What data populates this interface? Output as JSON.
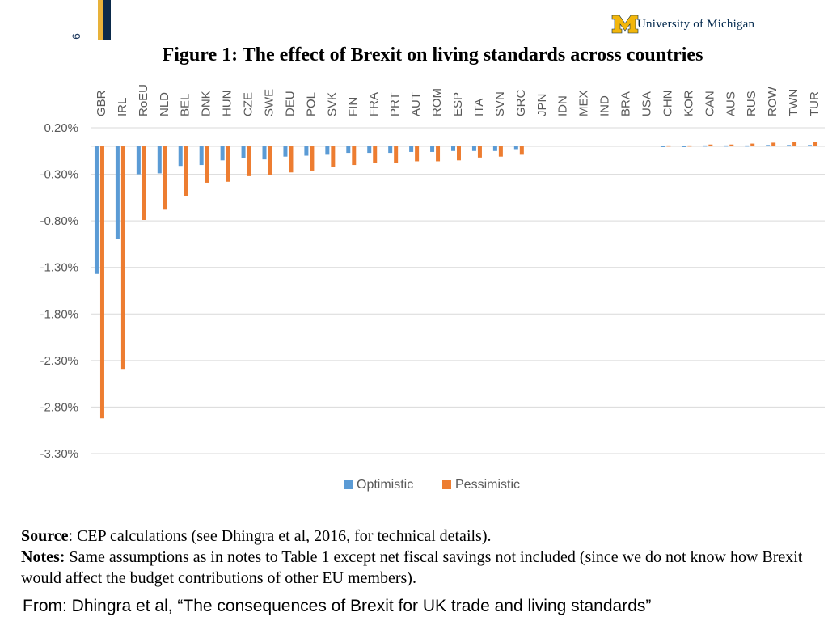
{
  "slide": {
    "number": "6"
  },
  "header": {
    "university": "University of Michigan",
    "colors": {
      "gold": "#E8B23A",
      "navy": "#00274C"
    }
  },
  "chart_data": {
    "type": "bar",
    "title": "Figure 1: The effect of Brexit on living standards across countries",
    "categories": [
      "GBR",
      "IRL",
      "RoEU",
      "NLD",
      "BEL",
      "DNK",
      "HUN",
      "CZE",
      "SWE",
      "DEU",
      "POL",
      "SVK",
      "FIN",
      "FRA",
      "PRT",
      "AUT",
      "ROM",
      "ESP",
      "ITA",
      "SVN",
      "GRC",
      "JPN",
      "IDN",
      "MEX",
      "IND",
      "BRA",
      "USA",
      "CHN",
      "KOR",
      "CAN",
      "AUS",
      "RUS",
      "ROW",
      "TWN",
      "TUR"
    ],
    "series": [
      {
        "name": "Optimistic",
        "color": "#5B9BD5",
        "values": [
          -1.37,
          -0.99,
          -0.3,
          -0.29,
          -0.21,
          -0.2,
          -0.15,
          -0.13,
          -0.14,
          -0.11,
          -0.1,
          -0.09,
          -0.07,
          -0.07,
          -0.07,
          -0.06,
          -0.06,
          -0.05,
          -0.05,
          -0.05,
          -0.03,
          0,
          0,
          0,
          0,
          0,
          0,
          0.005,
          0.005,
          0.01,
          0.01,
          0.01,
          0.015,
          0.015,
          0.015
        ]
      },
      {
        "name": "Pessimistic",
        "color": "#ED7D31",
        "values": [
          -2.92,
          -2.39,
          -0.79,
          -0.68,
          -0.53,
          -0.39,
          -0.38,
          -0.32,
          -0.31,
          -0.28,
          -0.26,
          -0.22,
          -0.2,
          -0.18,
          -0.18,
          -0.16,
          -0.16,
          -0.15,
          -0.12,
          -0.11,
          -0.09,
          0,
          0,
          0,
          0,
          0,
          0,
          0.01,
          0.01,
          0.02,
          0.02,
          0.03,
          0.04,
          0.05,
          0.05
        ]
      }
    ],
    "yticks": [
      "0.20%",
      "-0.30%",
      "-0.80%",
      "-1.30%",
      "-1.80%",
      "-2.30%",
      "-2.80%",
      "-3.30%"
    ],
    "ytick_values": [
      0.2,
      -0.3,
      -0.8,
      -1.3,
      -1.8,
      -2.3,
      -2.8,
      -3.3
    ],
    "ylim": [
      -3.3,
      0.2
    ],
    "grid": true,
    "legend": [
      "Optimistic",
      "Pessimistic"
    ],
    "legend_position": "bottom"
  },
  "notes": {
    "source_label": "Source",
    "source_text": ": CEP calculations (see Dhingra et al, 2016, for technical details).",
    "notes_label": "Notes:",
    "notes_text": " Same assumptions as in notes to Table 1 except net fiscal savings not included (since we do not know how Brexit would affect the budget contributions of other EU members)."
  },
  "footer": {
    "from_text": "From:  Dhingra et al, “The consequences of Brexit for UK trade and living standards”"
  }
}
